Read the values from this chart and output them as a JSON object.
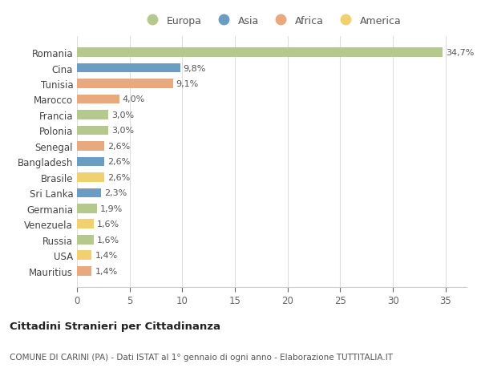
{
  "countries": [
    "Romania",
    "Cina",
    "Tunisia",
    "Marocco",
    "Francia",
    "Polonia",
    "Senegal",
    "Bangladesh",
    "Brasile",
    "Sri Lanka",
    "Germania",
    "Venezuela",
    "Russia",
    "USA",
    "Mauritius"
  ],
  "values": [
    34.7,
    9.8,
    9.1,
    4.0,
    3.0,
    3.0,
    2.6,
    2.6,
    2.6,
    2.3,
    1.9,
    1.6,
    1.6,
    1.4,
    1.4
  ],
  "labels": [
    "34,7%",
    "9,8%",
    "9,1%",
    "4,0%",
    "3,0%",
    "3,0%",
    "2,6%",
    "2,6%",
    "2,6%",
    "2,3%",
    "1,9%",
    "1,6%",
    "1,6%",
    "1,4%",
    "1,4%"
  ],
  "continents": [
    "Europa",
    "Asia",
    "Africa",
    "Africa",
    "Europa",
    "Europa",
    "Africa",
    "Asia",
    "America",
    "Asia",
    "Europa",
    "America",
    "Europa",
    "America",
    "Africa"
  ],
  "colors": {
    "Europa": "#b5c98e",
    "Asia": "#6b9dc2",
    "Africa": "#e8a97e",
    "America": "#f0d070"
  },
  "legend_order": [
    "Europa",
    "Asia",
    "Africa",
    "America"
  ],
  "bg_color": "#ffffff",
  "title": "Cittadini Stranieri per Cittadinanza",
  "subtitle": "COMUNE DI CARINI (PA) - Dati ISTAT al 1° gennaio di ogni anno - Elaborazione TUTTITALIA.IT",
  "xlim": [
    0,
    37
  ],
  "xticks": [
    0,
    5,
    10,
    15,
    20,
    25,
    30,
    35
  ]
}
